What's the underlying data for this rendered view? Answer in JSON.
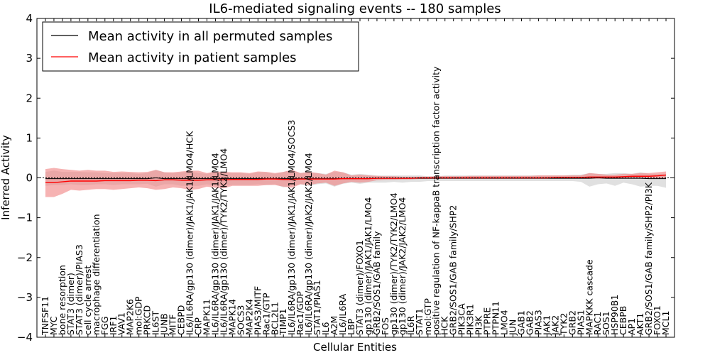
{
  "chart_data": {
    "type": "line",
    "title": "IL6-mediated signaling events -- 180 samples",
    "xlabel": "Cellular Entities",
    "ylabel": "Inferred Activity",
    "ylim": [
      -4,
      4
    ],
    "yticks": [
      -4,
      -3,
      -2,
      -1,
      0,
      1,
      2,
      3,
      4
    ],
    "grid": false,
    "legend_position": "top-left",
    "categories": [
      "TNFSF11",
      "MYC",
      "bone resorption",
      "STAT3 (dimer)",
      "STAT3 (dimer)/PIAS3",
      "cell cycle arrest",
      "macrophage differentiation",
      "FGG",
      "IRF1",
      "VAV1",
      "MAP2K6",
      "mol:GDP",
      "PRKCD",
      "IL6ST",
      "JUNB",
      "MITF",
      "CEBPD",
      "IL6/IL6RA/gp130 (dimer)/JAK1/JAK1/LMO4/HCK",
      "CRP",
      "MAPK11",
      "IL6/IL6RA/gp130 (dimer)/JAK1/JAK1/LMO4",
      "IL6/IL6RA/gp130 (dimer)/TYK2/TYK2/LMO4",
      "MAPK14",
      "SOCS3",
      "MAP2K4",
      "PIAS3/MITF",
      "Rac1/GTP",
      "BCL2L1",
      "TIMP1",
      "IL6/IL6RA/gp130 (dimer)/JAK1/JAK1/LMO4/SOCS3",
      "Rac1/GDP",
      "IL6/IL6RA/gp130 (dimer)/JAK2/JAK2/LMO4",
      "STAT1/PIAS1",
      "IL6",
      "A2M",
      "IL6/IL6RA",
      "LBP",
      "STAT3 (dimer)/FOXO1",
      "gp130 (dimer)/JAK1/JAK1/LMO4",
      "GRB2/SOS1/GAB family",
      "FOS",
      "gp130 (dimer)/TYK2/TYK2/LMO4",
      "gp130 (dimer)/JAK2/JAK2/LMO4",
      "IL6R",
      "STAT1",
      "mol:GTP",
      "positive regulation of NF-kappaB transcription factor activity",
      "HCK",
      "GRB2/SOS1/GAB family/SHP2",
      "PIK3CA",
      "PIK3R1",
      "PI3K",
      "PTPRE",
      "PTPN11",
      "LMO4",
      "JUN",
      "GAB1",
      "GAB2",
      "PIAS3",
      "JAK1",
      "JAK2",
      "TYK2",
      "GRB2",
      "PIAS1",
      "MAPKKK cascade",
      "RAC1",
      "SOS1",
      "HSP90B1",
      "CEBPB",
      "AP1",
      "AKT1",
      "GRB2/SOS1/GAB family/SHP2/PI3K",
      "FOXO1",
      "MCL1"
    ],
    "series": [
      {
        "name": "Mean activity in all permuted samples",
        "color": "#000000",
        "band_color": "#bbbbbb",
        "values": [
          -0.02,
          -0.02,
          -0.02,
          -0.02,
          -0.02,
          -0.02,
          -0.02,
          -0.02,
          -0.02,
          -0.02,
          -0.02,
          -0.02,
          -0.02,
          0.0,
          -0.02,
          -0.02,
          -0.02,
          -0.02,
          -0.02,
          -0.02,
          -0.02,
          -0.02,
          -0.02,
          -0.02,
          -0.02,
          -0.02,
          -0.02,
          -0.02,
          -0.02,
          -0.02,
          -0.02,
          -0.02,
          -0.02,
          -0.02,
          -0.02,
          -0.02,
          -0.02,
          -0.02,
          -0.02,
          -0.01,
          -0.01,
          -0.01,
          -0.01,
          -0.01,
          -0.01,
          -0.01,
          -0.01,
          -0.01,
          -0.01,
          -0.01,
          -0.01,
          -0.01,
          -0.01,
          -0.01,
          -0.01,
          -0.01,
          -0.01,
          -0.01,
          -0.01,
          -0.01,
          -0.01,
          -0.01,
          -0.01,
          -0.01,
          -0.01,
          0.0,
          -0.01,
          -0.01,
          -0.01,
          -0.01,
          -0.01,
          -0.02,
          -0.02,
          -0.02
        ],
        "lower": [
          -0.2,
          -0.18,
          -0.18,
          -0.16,
          -0.18,
          -0.18,
          -0.16,
          -0.16,
          -0.18,
          -0.16,
          -0.16,
          -0.16,
          -0.15,
          -0.22,
          -0.16,
          -0.16,
          -0.2,
          -0.2,
          -0.2,
          -0.16,
          -0.2,
          -0.2,
          -0.18,
          -0.18,
          -0.18,
          -0.16,
          -0.18,
          -0.16,
          -0.24,
          -0.2,
          -0.16,
          -0.2,
          -0.16,
          -0.14,
          -0.22,
          -0.15,
          -0.12,
          -0.15,
          -0.12,
          -0.12,
          -0.12,
          -0.1,
          -0.12,
          -0.1,
          -0.1,
          -0.08,
          -0.08,
          -0.08,
          -0.08,
          -0.08,
          -0.08,
          -0.08,
          -0.08,
          -0.08,
          -0.08,
          -0.08,
          -0.08,
          -0.08,
          -0.08,
          -0.08,
          -0.08,
          -0.08,
          -0.08,
          -0.1,
          -0.22,
          -0.16,
          -0.14,
          -0.2,
          -0.12,
          -0.16,
          -0.22,
          -0.2,
          -0.2,
          -0.25
        ],
        "upper": [
          0.15,
          0.18,
          0.15,
          0.15,
          0.15,
          0.14,
          0.14,
          0.12,
          0.12,
          0.12,
          0.12,
          0.1,
          0.12,
          0.2,
          0.14,
          0.12,
          0.14,
          0.16,
          0.12,
          0.1,
          0.15,
          0.12,
          0.12,
          0.12,
          0.1,
          0.14,
          0.14,
          0.1,
          0.15,
          0.2,
          0.12,
          0.14,
          0.12,
          0.1,
          0.15,
          0.14,
          0.08,
          0.1,
          0.08,
          0.06,
          0.06,
          0.06,
          0.06,
          0.06,
          0.06,
          0.04,
          0.04,
          0.06,
          0.06,
          0.06,
          0.06,
          0.06,
          0.06,
          0.06,
          0.06,
          0.06,
          0.06,
          0.06,
          0.06,
          0.06,
          0.06,
          0.06,
          0.08,
          0.08,
          0.12,
          0.1,
          0.1,
          0.12,
          0.12,
          0.1,
          0.14,
          0.1,
          0.1,
          0.1
        ]
      },
      {
        "name": "Mean activity in patient samples",
        "color": "#ff0000",
        "band_color": "#f08080",
        "values": [
          -0.12,
          -0.12,
          -0.1,
          -0.08,
          -0.08,
          -0.08,
          -0.08,
          -0.07,
          -0.07,
          -0.07,
          -0.07,
          -0.06,
          -0.06,
          -0.07,
          -0.05,
          -0.05,
          -0.06,
          -0.06,
          -0.06,
          -0.05,
          -0.05,
          -0.05,
          -0.04,
          -0.04,
          -0.04,
          -0.04,
          -0.03,
          -0.03,
          -0.04,
          -0.04,
          -0.03,
          -0.03,
          -0.03,
          -0.03,
          -0.03,
          -0.02,
          -0.02,
          -0.02,
          -0.02,
          -0.01,
          -0.01,
          -0.01,
          -0.01,
          -0.01,
          0.0,
          0.0,
          0.0,
          0.0,
          0.0,
          0.0,
          0.0,
          0.0,
          0.0,
          0.0,
          0.0,
          0.0,
          0.0,
          0.0,
          0.0,
          0.0,
          0.01,
          0.01,
          0.01,
          0.01,
          0.02,
          0.02,
          0.02,
          0.02,
          0.03,
          0.04,
          0.04,
          0.04,
          0.05,
          0.07
        ],
        "lower": [
          -0.48,
          -0.48,
          -0.4,
          -0.3,
          -0.32,
          -0.3,
          -0.28,
          -0.28,
          -0.3,
          -0.28,
          -0.26,
          -0.24,
          -0.26,
          -0.3,
          -0.28,
          -0.24,
          -0.26,
          -0.3,
          -0.28,
          -0.22,
          -0.25,
          -0.26,
          -0.2,
          -0.2,
          -0.2,
          -0.2,
          -0.18,
          -0.18,
          -0.22,
          -0.25,
          -0.16,
          -0.18,
          -0.14,
          -0.12,
          -0.2,
          -0.14,
          -0.1,
          -0.12,
          -0.1,
          -0.06,
          -0.05,
          -0.05,
          -0.04,
          -0.04,
          -0.03,
          -0.03,
          -0.02,
          -0.02,
          -0.02,
          -0.02,
          -0.02,
          -0.02,
          -0.02,
          -0.02,
          -0.02,
          -0.02,
          -0.02,
          -0.02,
          -0.02,
          -0.02,
          -0.02,
          -0.02,
          -0.02,
          -0.02,
          -0.02,
          -0.02,
          -0.02,
          -0.02,
          -0.02,
          -0.02,
          -0.02,
          -0.02,
          -0.02,
          -0.02
        ],
        "upper": [
          0.22,
          0.25,
          0.22,
          0.2,
          0.18,
          0.2,
          0.18,
          0.18,
          0.15,
          0.16,
          0.15,
          0.14,
          0.15,
          0.2,
          0.14,
          0.14,
          0.16,
          0.18,
          0.18,
          0.12,
          0.16,
          0.15,
          0.14,
          0.14,
          0.12,
          0.16,
          0.15,
          0.12,
          0.15,
          0.2,
          0.12,
          0.15,
          0.12,
          0.08,
          0.18,
          0.14,
          0.06,
          0.08,
          0.06,
          0.05,
          0.04,
          0.04,
          0.03,
          0.03,
          0.03,
          0.03,
          0.04,
          0.04,
          0.04,
          0.04,
          0.05,
          0.05,
          0.05,
          0.05,
          0.05,
          0.05,
          0.05,
          0.05,
          0.06,
          0.06,
          0.06,
          0.06,
          0.06,
          0.06,
          0.12,
          0.1,
          0.08,
          0.08,
          0.1,
          0.1,
          0.12,
          0.12,
          0.14,
          0.16
        ]
      }
    ]
  }
}
